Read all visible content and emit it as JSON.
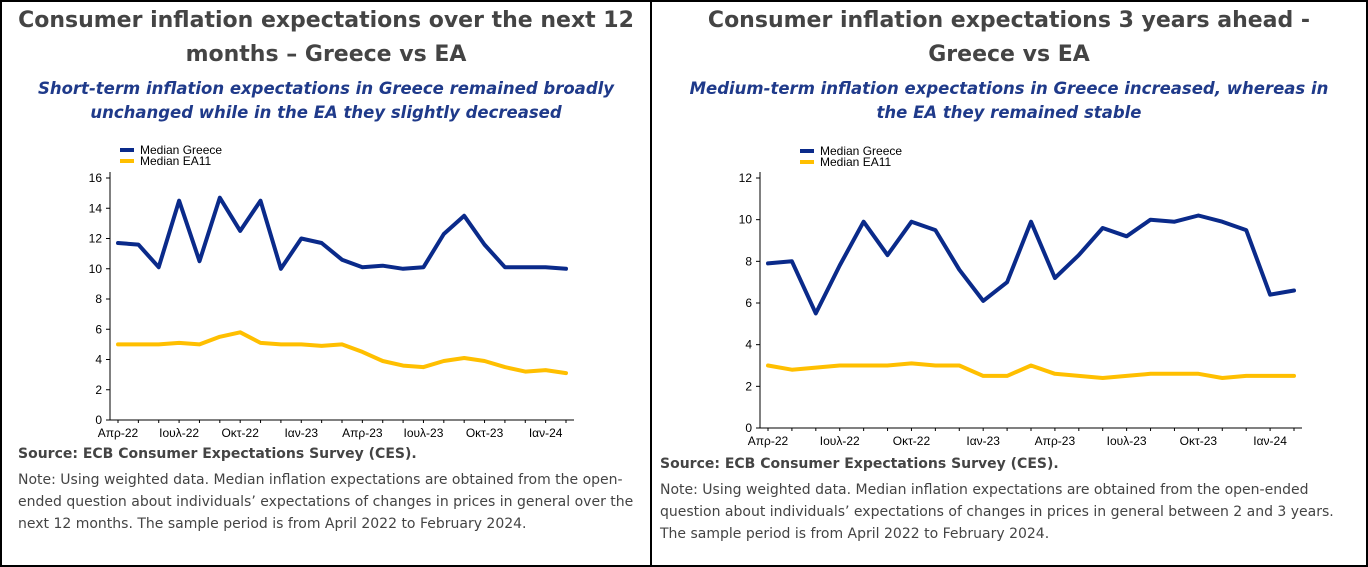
{
  "colors": {
    "greece": "#0a2a8a",
    "ea": "#ffbf00",
    "title": "#444444",
    "subtitle": "#1f3a8a"
  },
  "panels": [
    {
      "title": "Consumer inflation expectations over the next 12 months – Greece vs EA",
      "subtitle": "Short-term inflation expectations in Greece  remained broadly unchanged while in the EA they slightly decreased",
      "source": "Source: ECB Consumer Expectations Survey (CES).",
      "note": "Note: Using weighted data. Median inflation expectations are obtained from the open-ended question about individuals’ expectations of changes in prices in general over the next 12 months. The sample period is from April 2022 to February 2024."
    },
    {
      "title": "Consumer inflation expectations 3 years ahead - Greece vs EA",
      "subtitle": "Medium-term inflation expectations in Greece increased, whereas in the EA they remained stable",
      "source": "Source: ECB Consumer Expectations Survey (CES).",
      "note": "Note: Using weighted data. Median inflation expectations are obtained from the open-ended question about individuals’ expectations of changes in prices in general between 2 and 3 years. The sample period is from April 2022 to February 2024."
    }
  ],
  "chart_data": [
    {
      "type": "line",
      "x": [
        "Apr-22",
        "May-22",
        "Jun-22",
        "Jul-22",
        "Aug-22",
        "Sep-22",
        "Oct-22",
        "Nov-22",
        "Dec-22",
        "Jan-23",
        "Feb-23",
        "Mar-23",
        "Apr-23",
        "May-23",
        "Jun-23",
        "Jul-23",
        "Aug-23",
        "Sep-23",
        "Oct-23",
        "Nov-23",
        "Dec-23",
        "Jan-24",
        "Feb-24"
      ],
      "xtick_labels": [
        "Απρ-22",
        "Ιουλ-22",
        "Οκτ-22",
        "Ιαν-23",
        "Απρ-23",
        "Ιουλ-23",
        "Οκτ-23",
        "Ιαν-24"
      ],
      "xtick_every": 3,
      "ylim": [
        0,
        16
      ],
      "yticks": [
        0,
        2,
        4,
        6,
        8,
        10,
        12,
        14,
        16
      ],
      "legend": "top-left",
      "grid": false,
      "series": [
        {
          "name": "Median Greece",
          "values": [
            11.7,
            11.6,
            10.1,
            14.5,
            10.5,
            14.7,
            12.5,
            14.5,
            10.0,
            12.0,
            11.7,
            10.6,
            10.1,
            10.2,
            10.0,
            10.1,
            12.3,
            13.5,
            11.6,
            10.1,
            10.1,
            10.1,
            10.0
          ]
        },
        {
          "name": "Median EA11",
          "values": [
            5.0,
            5.0,
            5.0,
            5.1,
            5.0,
            5.5,
            5.8,
            5.1,
            5.0,
            5.0,
            4.9,
            5.0,
            4.5,
            3.9,
            3.6,
            3.5,
            3.9,
            4.1,
            3.9,
            3.5,
            3.2,
            3.3,
            3.1
          ]
        }
      ]
    },
    {
      "type": "line",
      "x": [
        "Apr-22",
        "May-22",
        "Jun-22",
        "Jul-22",
        "Aug-22",
        "Sep-22",
        "Oct-22",
        "Nov-22",
        "Dec-22",
        "Jan-23",
        "Feb-23",
        "Mar-23",
        "Apr-23",
        "May-23",
        "Jun-23",
        "Jul-23",
        "Aug-23",
        "Sep-23",
        "Oct-23",
        "Nov-23",
        "Dec-23",
        "Jan-24",
        "Feb-24"
      ],
      "xtick_labels": [
        "Απρ-22",
        "Ιουλ-22",
        "Οκτ-22",
        "Ιαν-23",
        "Απρ-23",
        "Ιουλ-23",
        "Οκτ-23",
        "Ιαν-24"
      ],
      "xtick_every": 3,
      "ylim": [
        0,
        12
      ],
      "yticks": [
        0,
        2,
        4,
        6,
        8,
        10,
        12
      ],
      "legend": "top-left",
      "grid": false,
      "series": [
        {
          "name": "Median Greece",
          "values": [
            7.9,
            8.0,
            5.5,
            7.8,
            9.9,
            8.3,
            9.9,
            9.5,
            7.6,
            6.1,
            7.0,
            9.9,
            7.2,
            8.3,
            9.6,
            9.2,
            10.0,
            9.9,
            10.2,
            9.9,
            9.5,
            6.4,
            6.6
          ]
        },
        {
          "name": "Median EA11",
          "values": [
            3.0,
            2.8,
            2.9,
            3.0,
            3.0,
            3.0,
            3.1,
            3.0,
            3.0,
            2.5,
            2.5,
            3.0,
            2.6,
            2.5,
            2.4,
            2.5,
            2.6,
            2.6,
            2.6,
            2.4,
            2.5,
            2.5,
            2.5
          ]
        }
      ]
    }
  ]
}
